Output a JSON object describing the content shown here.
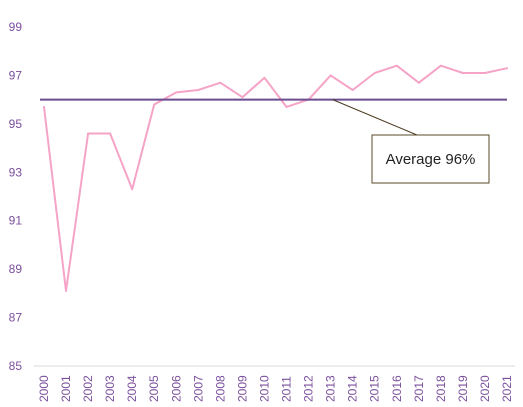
{
  "chart_data": {
    "type": "line",
    "title": "",
    "xlabel": "",
    "ylabel": "",
    "x": [
      "2000",
      "2001",
      "2002",
      "2003",
      "2004",
      "2005",
      "2006",
      "2007",
      "2008",
      "2009",
      "2010",
      "2011",
      "2012",
      "2013",
      "2014",
      "2015",
      "2016",
      "2017",
      "2018",
      "2019",
      "2020",
      "2021"
    ],
    "series": [
      {
        "values": [
          95.7,
          88.1,
          94.6,
          94.6,
          92.3,
          95.8,
          96.3,
          96.4,
          96.7,
          96.1,
          96.9,
          95.7,
          96.0,
          97.0,
          96.4,
          97.1,
          97.4,
          96.7,
          97.4,
          97.1,
          97.1,
          97.3
        ],
        "color": "#f5a3c7"
      }
    ],
    "average": {
      "value": 96,
      "color": "#6b4c8f",
      "label": "Average 96%"
    },
    "ylim": [
      85,
      99
    ],
    "yticks": [
      85,
      87,
      89,
      91,
      93,
      95,
      97,
      99
    ],
    "grid": false,
    "axis_color": "#7b4f9d"
  }
}
